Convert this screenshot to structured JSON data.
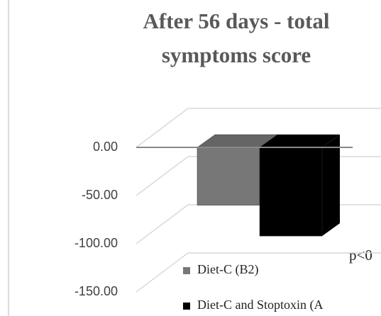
{
  "chart_data": {
    "type": "bar3d",
    "title": [
      "After 56 days - total",
      "symptoms score"
    ],
    "categories": [
      null
    ],
    "series": [
      {
        "name": "Diet-C (B2)",
        "color": "#777777",
        "values": [
          -60
        ]
      },
      {
        "name": "Diet-C and Stoptoxin (A",
        "color": "#000000",
        "values": [
          -92
        ]
      }
    ],
    "ylim": [
      -150,
      0
    ],
    "yticks": [
      {
        "value": 0,
        "label": "0.00"
      },
      {
        "value": -50,
        "label": "-50.00"
      },
      {
        "value": -100,
        "label": "-100.00"
      },
      {
        "value": -150,
        "label": "-150.00"
      }
    ],
    "annotation": "p<0",
    "grid": true
  }
}
